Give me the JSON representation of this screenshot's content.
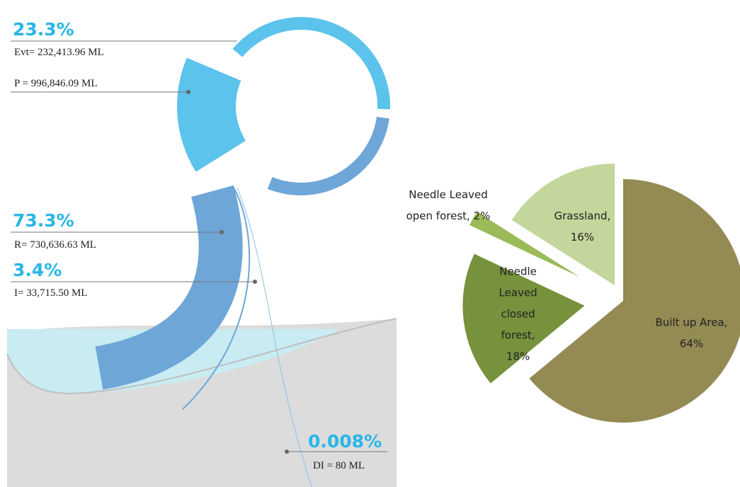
{
  "water_balance": {
    "items": [
      {
        "percent": "23.3%",
        "label": "Evt= 232,413.96 ML"
      },
      {
        "label": "P = 996,846.09 ML"
      },
      {
        "percent": "73.3%",
        "label": "R= 730,636.63 ML"
      },
      {
        "percent": "3.4%",
        "label": "I= 33,715.50 ML"
      },
      {
        "percent": "0.008%",
        "label": "DI = 80 ML"
      }
    ]
  },
  "chart_data": {
    "type": "pie",
    "values": [
      64,
      18,
      2,
      16
    ],
    "value_labels": [
      "Built up Area, 64%",
      "Needle Leaved closed forest, 18%",
      "Needle Leaved open forest, 2%",
      "Grassland, 16%"
    ],
    "colors": [
      "#948a54",
      "#76923c",
      "#9bbb59",
      "#c3d69b"
    ]
  }
}
